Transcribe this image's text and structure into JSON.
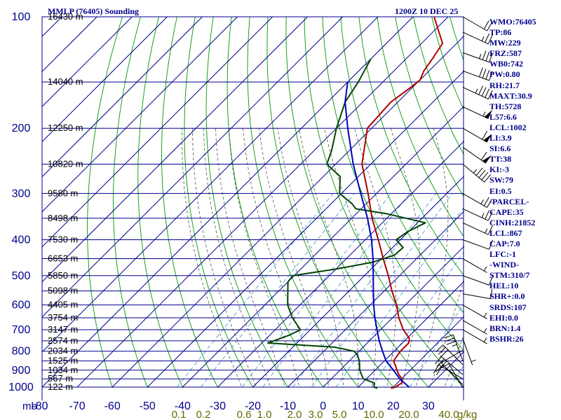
{
  "header": {
    "title": "MMLP (76405) Sounding",
    "datetime": "1200Z 10 DEC 25"
  },
  "indices": [
    "WMO:76405",
    "TP:86",
    "MW:229",
    "FRZ:587",
    "WB0:742",
    "PW:0.80",
    "RH:21.7",
    "MAXT:30.9",
    "TH:5728",
    "L57:6.6",
    "LCL:1002",
    "LI:3.9",
    "SI:6.6",
    "TT:38",
    "KI:-3",
    "SW:79",
    "EI:0.5",
    "-PARCEL-",
    "CAPE:35",
    "CINH:21852",
    "LCL:867",
    "CAP:7.0",
    "LFC:-1",
    "-WIND-",
    "STM:310/7",
    "HEL:10",
    "SHR+:0.0",
    "SRDS:107",
    "EHI:0.0",
    "BRN:1.4",
    "BSHR:26"
  ],
  "colors": {
    "grid": "#00008b",
    "temperature": "#b00000",
    "dewpoint": "#004400",
    "parcel": "#0000c0",
    "dry_adiabat": "#009900",
    "moist_adiabat": "#555555",
    "mixing_ratio": "#3399cc",
    "wind_barb": "#000000",
    "mixing_label": "#666600"
  },
  "chart_data": {
    "type": "skew-t",
    "title": "MMLP (76405) Sounding",
    "xlabel": "mb",
    "x_unit_label": "g/kg",
    "pressure_axis": {
      "range": [
        100,
        1000
      ],
      "ticks": [
        100,
        200,
        300,
        400,
        500,
        600,
        700,
        800,
        900,
        1000
      ]
    },
    "temperature_axis": {
      "range": [
        -80,
        40
      ],
      "ticks": [
        -80,
        -70,
        -60,
        -50,
        -40,
        -30,
        -20,
        -10,
        0,
        10,
        20,
        30
      ]
    },
    "height_labels": [
      {
        "p": 100,
        "label": "16430 m"
      },
      {
        "p": 150,
        "label": "14040 m"
      },
      {
        "p": 200,
        "label": "12250 m"
      },
      {
        "p": 250,
        "label": "10820 m"
      },
      {
        "p": 300,
        "label": "9580 m"
      },
      {
        "p": 350,
        "label": "8498 m"
      },
      {
        "p": 400,
        "label": "7530 m"
      },
      {
        "p": 450,
        "label": "6653 m"
      },
      {
        "p": 500,
        "label": "5850 m"
      },
      {
        "p": 550,
        "label": "5098 m"
      },
      {
        "p": 600,
        "label": "4405 m"
      },
      {
        "p": 650,
        "label": "3754 m"
      },
      {
        "p": 700,
        "label": "3147 m"
      },
      {
        "p": 750,
        "label": "2574 m"
      },
      {
        "p": 800,
        "label": "2034 m"
      },
      {
        "p": 850,
        "label": "1525 m"
      },
      {
        "p": 900,
        "label": "1034 m"
      },
      {
        "p": 950,
        "label": "567 m"
      },
      {
        "p": 1000,
        "label": "122 m"
      }
    ],
    "mixing_ratio_labels": [
      "0.1",
      "0.2",
      "0.6",
      "1.0",
      "2.0",
      "3.0",
      "5.0",
      "10.0",
      "20.0",
      "40.0"
    ],
    "series": [
      {
        "name": "Temperature",
        "points": [
          [
            1008,
            19.7
          ],
          [
            1000,
            20.6
          ],
          [
            975,
            21.2
          ],
          [
            950,
            20.1
          ],
          [
            925,
            18
          ],
          [
            900,
            16.2
          ],
          [
            875,
            14.5
          ],
          [
            850,
            12.6
          ],
          [
            800,
            11.8
          ],
          [
            760,
            11.8
          ],
          [
            740,
            10.8
          ],
          [
            700,
            6.5
          ],
          [
            650,
            1.8
          ],
          [
            600,
            -2.5
          ],
          [
            550,
            -7.8
          ],
          [
            500,
            -13.2
          ],
          [
            450,
            -19.5
          ],
          [
            400,
            -26.3
          ],
          [
            350,
            -34.2
          ],
          [
            300,
            -42.4
          ],
          [
            250,
            -52.5
          ],
          [
            200,
            -61.2
          ],
          [
            170,
            -62
          ],
          [
            155,
            -60.5
          ],
          [
            148,
            -60
          ],
          [
            140,
            -61.5
          ],
          [
            130,
            -62.5
          ],
          [
            118,
            -64
          ],
          [
            100,
            -74
          ]
        ]
      },
      {
        "name": "Dewpoint",
        "points": [
          [
            1008,
            15.8
          ],
          [
            1000,
            14.5
          ],
          [
            975,
            13.5
          ],
          [
            950,
            9.1
          ],
          [
            900,
            5.6
          ],
          [
            850,
            2.9
          ],
          [
            820,
            0.7
          ],
          [
            800,
            -1.4
          ],
          [
            780,
            -8.2
          ],
          [
            760,
            -28.3
          ],
          [
            725,
            -24.5
          ],
          [
            700,
            -22.8
          ],
          [
            650,
            -28.5
          ],
          [
            600,
            -33.5
          ],
          [
            520,
            -40
          ],
          [
            500,
            -40.4
          ],
          [
            480,
            -30
          ],
          [
            460,
            -21.5
          ],
          [
            440,
            -17.3
          ],
          [
            420,
            -17
          ],
          [
            400,
            -21.2
          ],
          [
            380,
            -20.2
          ],
          [
            360,
            -17.7
          ],
          [
            340,
            -31.5
          ],
          [
            330,
            -41.5
          ],
          [
            320,
            -44
          ],
          [
            300,
            -50.5
          ],
          [
            270,
            -55.2
          ],
          [
            250,
            -62.5
          ],
          [
            230,
            -65
          ],
          [
            200,
            -70
          ],
          [
            170,
            -75
          ],
          [
            150,
            -77
          ],
          [
            130,
            -80
          ]
        ]
      },
      {
        "name": "Parcel",
        "points": [
          [
            1000,
            24.5
          ],
          [
            950,
            19.5
          ],
          [
            900,
            15.2
          ],
          [
            850,
            10.5
          ],
          [
            800,
            6.7
          ],
          [
            750,
            2.8
          ],
          [
            700,
            -1
          ],
          [
            650,
            -5
          ],
          [
            600,
            -9
          ],
          [
            550,
            -13.1
          ],
          [
            500,
            -17.5
          ],
          [
            450,
            -22.4
          ],
          [
            400,
            -28.2
          ],
          [
            350,
            -35.5
          ],
          [
            300,
            -44.5
          ],
          [
            250,
            -55
          ],
          [
            200,
            -66.8
          ],
          [
            170,
            -75
          ],
          [
            150,
            -80
          ]
        ]
      }
    ],
    "winds": [
      {
        "p": 850,
        "dir": 20,
        "spd": 35
      },
      {
        "p": 870,
        "dir": 45,
        "spd": 30
      },
      {
        "p": 925,
        "dir": 50,
        "spd": 30
      },
      {
        "p": 950,
        "dir": 60,
        "spd": 20
      },
      {
        "p": 985,
        "dir": 45,
        "spd": 10
      },
      {
        "p": 1005,
        "dir": 30,
        "spd": 10
      },
      {
        "p": 795,
        "dir": 120,
        "spd": 5
      },
      {
        "p": 740,
        "dir": 200,
        "spd": 5
      },
      {
        "p": 700,
        "dir": 240,
        "spd": 5
      },
      {
        "p": 660,
        "dir": 240,
        "spd": 5
      },
      {
        "p": 600,
        "dir": 240,
        "spd": 5
      },
      {
        "p": 560,
        "dir": 260,
        "spd": 10
      },
      {
        "p": 500,
        "dir": 250,
        "spd": 10
      },
      {
        "p": 450,
        "dir": 240,
        "spd": 5
      },
      {
        "p": 400,
        "dir": 250,
        "spd": 10
      },
      {
        "p": 360,
        "dir": 245,
        "spd": 15
      },
      {
        "p": 330,
        "dir": 245,
        "spd": 25
      },
      {
        "p": 300,
        "dir": 240,
        "spd": 25
      },
      {
        "p": 250,
        "dir": 230,
        "spd": 45
      },
      {
        "p": 225,
        "dir": 235,
        "spd": 60
      },
      {
        "p": 200,
        "dir": 240,
        "spd": 60
      },
      {
        "p": 175,
        "dir": 245,
        "spd": 55
      },
      {
        "p": 155,
        "dir": 245,
        "spd": 45
      },
      {
        "p": 140,
        "dir": 250,
        "spd": 40
      },
      {
        "p": 125,
        "dir": 250,
        "spd": 35
      },
      {
        "p": 110,
        "dir": 245,
        "spd": 25
      },
      {
        "p": 100,
        "dir": 240,
        "spd": 20
      }
    ]
  }
}
